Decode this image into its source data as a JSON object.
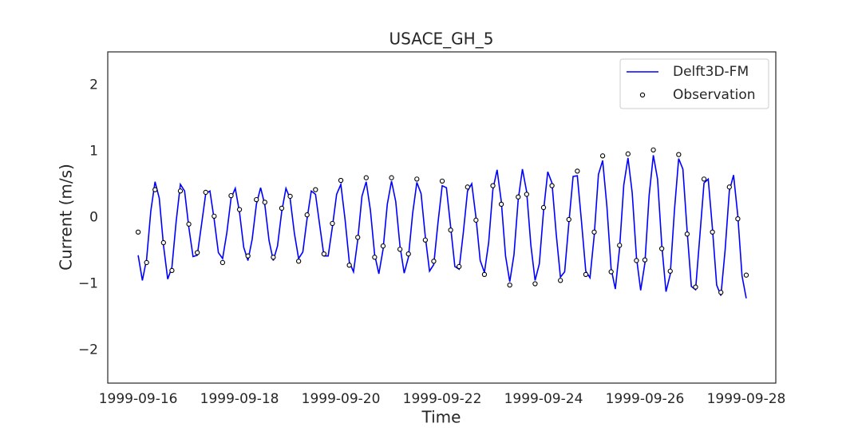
{
  "chart_data": {
    "type": "line",
    "title": "USACE_GH_5",
    "xlabel": "Time",
    "ylabel": "Current (m/s)",
    "x": [
      "1999-09-16 00:00",
      "1999-09-16 02:00",
      "1999-09-16 04:00",
      "1999-09-16 06:00",
      "1999-09-16 08:00",
      "1999-09-16 10:00",
      "1999-09-16 12:00",
      "1999-09-16 14:00",
      "1999-09-16 16:00",
      "1999-09-16 18:00",
      "1999-09-16 20:00",
      "1999-09-16 22:00",
      "1999-09-17 00:00",
      "1999-09-17 02:00",
      "1999-09-17 04:00",
      "1999-09-17 06:00",
      "1999-09-17 08:00",
      "1999-09-17 10:00",
      "1999-09-17 12:00",
      "1999-09-17 14:00",
      "1999-09-17 16:00",
      "1999-09-17 18:00",
      "1999-09-17 20:00",
      "1999-09-17 22:00",
      "1999-09-18 00:00",
      "1999-09-18 02:00",
      "1999-09-18 04:00",
      "1999-09-18 06:00",
      "1999-09-18 08:00",
      "1999-09-18 10:00",
      "1999-09-18 12:00",
      "1999-09-18 14:00",
      "1999-09-18 16:00",
      "1999-09-18 18:00",
      "1999-09-18 20:00",
      "1999-09-18 22:00",
      "1999-09-19 00:00",
      "1999-09-19 02:00",
      "1999-09-19 04:00",
      "1999-09-19 06:00",
      "1999-09-19 08:00",
      "1999-09-19 10:00",
      "1999-09-19 12:00",
      "1999-09-19 14:00",
      "1999-09-19 16:00",
      "1999-09-19 18:00",
      "1999-09-19 20:00",
      "1999-09-19 22:00",
      "1999-09-20 00:00",
      "1999-09-20 02:00",
      "1999-09-20 04:00",
      "1999-09-20 06:00",
      "1999-09-20 08:00",
      "1999-09-20 10:00",
      "1999-09-20 12:00",
      "1999-09-20 14:00",
      "1999-09-20 16:00",
      "1999-09-20 18:00",
      "1999-09-20 20:00",
      "1999-09-20 22:00",
      "1999-09-21 00:00",
      "1999-09-21 02:00",
      "1999-09-21 04:00",
      "1999-09-21 06:00",
      "1999-09-21 08:00",
      "1999-09-21 10:00",
      "1999-09-21 12:00",
      "1999-09-21 14:00",
      "1999-09-21 16:00",
      "1999-09-21 18:00",
      "1999-09-21 20:00",
      "1999-09-21 22:00",
      "1999-09-22 00:00",
      "1999-09-22 02:00",
      "1999-09-22 04:00",
      "1999-09-22 06:00",
      "1999-09-22 08:00",
      "1999-09-22 10:00",
      "1999-09-22 12:00",
      "1999-09-22 14:00",
      "1999-09-22 16:00",
      "1999-09-22 18:00",
      "1999-09-22 20:00",
      "1999-09-22 22:00",
      "1999-09-23 00:00",
      "1999-09-23 02:00",
      "1999-09-23 04:00",
      "1999-09-23 06:00",
      "1999-09-23 08:00",
      "1999-09-23 10:00",
      "1999-09-23 12:00",
      "1999-09-23 14:00",
      "1999-09-23 16:00",
      "1999-09-23 18:00",
      "1999-09-23 20:00",
      "1999-09-23 22:00",
      "1999-09-24 00:00",
      "1999-09-24 02:00",
      "1999-09-24 04:00",
      "1999-09-24 06:00",
      "1999-09-24 08:00",
      "1999-09-24 10:00",
      "1999-09-24 12:00",
      "1999-09-24 14:00",
      "1999-09-24 16:00",
      "1999-09-24 18:00",
      "1999-09-24 20:00",
      "1999-09-24 22:00",
      "1999-09-25 00:00",
      "1999-09-25 02:00",
      "1999-09-25 04:00",
      "1999-09-25 06:00",
      "1999-09-25 08:00",
      "1999-09-25 10:00",
      "1999-09-25 12:00",
      "1999-09-25 14:00",
      "1999-09-25 16:00",
      "1999-09-25 18:00",
      "1999-09-25 20:00",
      "1999-09-25 22:00",
      "1999-09-26 00:00",
      "1999-09-26 02:00",
      "1999-09-26 04:00",
      "1999-09-26 06:00",
      "1999-09-26 08:00",
      "1999-09-26 10:00",
      "1999-09-26 12:00",
      "1999-09-26 14:00",
      "1999-09-26 16:00",
      "1999-09-26 18:00",
      "1999-09-26 20:00",
      "1999-09-26 22:00",
      "1999-09-27 00:00",
      "1999-09-27 02:00",
      "1999-09-27 04:00",
      "1999-09-27 06:00",
      "1999-09-27 08:00",
      "1999-09-27 10:00",
      "1999-09-27 12:00",
      "1999-09-27 14:00",
      "1999-09-27 16:00",
      "1999-09-27 18:00",
      "1999-09-27 20:00",
      "1999-09-27 22:00",
      "1999-09-28 00:00"
    ],
    "series": [
      {
        "name": "Delft3D-FM",
        "color": "#0000ff",
        "values": [
          -0.57,
          -0.95,
          -0.63,
          0.1,
          0.54,
          0.29,
          -0.42,
          -0.93,
          -0.75,
          -0.06,
          0.5,
          0.4,
          -0.15,
          -0.59,
          -0.57,
          -0.11,
          0.36,
          0.4,
          -0.03,
          -0.53,
          -0.62,
          -0.23,
          0.29,
          0.44,
          0.08,
          -0.45,
          -0.65,
          -0.33,
          0.2,
          0.45,
          0.19,
          -0.35,
          -0.65,
          -0.43,
          0.09,
          0.44,
          0.28,
          -0.24,
          -0.62,
          -0.52,
          -0.02,
          0.4,
          0.35,
          -0.12,
          -0.58,
          -0.58,
          -0.14,
          0.35,
          0.5,
          -0.03,
          -0.67,
          -0.82,
          -0.34,
          0.32,
          0.54,
          0.11,
          -0.56,
          -0.85,
          -0.48,
          0.2,
          0.55,
          0.24,
          -0.43,
          -0.84,
          -0.6,
          0.06,
          0.53,
          0.36,
          -0.29,
          -0.81,
          -0.71,
          -0.08,
          0.48,
          0.45,
          -0.14,
          -0.74,
          -0.78,
          -0.23,
          0.4,
          0.51,
          0.0,
          -0.65,
          -0.83,
          -0.38,
          0.42,
          0.72,
          0.24,
          -0.58,
          -0.97,
          -0.56,
          0.27,
          0.73,
          0.39,
          -0.42,
          -0.95,
          -0.7,
          0.1,
          0.69,
          0.52,
          -0.25,
          -0.9,
          -0.82,
          -0.08,
          0.62,
          0.63,
          -0.07,
          -0.81,
          -0.91,
          -0.27,
          0.65,
          0.86,
          0.17,
          -0.77,
          -1.08,
          -0.47,
          0.49,
          0.9,
          0.37,
          -0.6,
          -1.1,
          -0.69,
          0.33,
          0.94,
          0.58,
          -0.42,
          -1.12,
          -0.86,
          0.11,
          0.89,
          0.73,
          -0.2,
          -1.04,
          -1.09,
          -0.29,
          0.52,
          0.58,
          -0.17,
          -1.02,
          -1.18,
          -0.49,
          0.4,
          0.64,
          0.03,
          -0.88,
          -1.22
        ]
      },
      {
        "name": "Observation",
        "color": "#000000",
        "x": [
          "1999-09-16 00:00",
          "1999-09-16 04:00",
          "1999-09-16 08:00",
          "1999-09-16 12:00",
          "1999-09-16 16:00",
          "1999-09-16 20:00",
          "1999-09-17 00:00",
          "1999-09-17 04:00",
          "1999-09-17 08:00",
          "1999-09-17 12:00",
          "1999-09-17 16:00",
          "1999-09-17 20:00",
          "1999-09-18 00:00",
          "1999-09-18 04:00",
          "1999-09-18 08:00",
          "1999-09-18 12:00",
          "1999-09-18 16:00",
          "1999-09-18 20:00",
          "1999-09-19 00:00",
          "1999-09-19 04:00",
          "1999-09-19 08:00",
          "1999-09-19 12:00",
          "1999-09-19 16:00",
          "1999-09-19 20:00",
          "1999-09-20 00:00",
          "1999-09-20 04:00",
          "1999-09-20 08:00",
          "1999-09-20 12:00",
          "1999-09-20 16:00",
          "1999-09-20 20:00",
          "1999-09-21 00:00",
          "1999-09-21 04:00",
          "1999-09-21 08:00",
          "1999-09-21 12:00",
          "1999-09-21 16:00",
          "1999-09-21 20:00",
          "1999-09-22 00:00",
          "1999-09-22 04:00",
          "1999-09-22 08:00",
          "1999-09-22 12:00",
          "1999-09-22 16:00",
          "1999-09-22 20:00",
          "1999-09-23 00:00",
          "1999-09-23 04:00",
          "1999-09-23 08:00",
          "1999-09-23 12:00",
          "1999-09-23 16:00",
          "1999-09-23 20:00",
          "1999-09-24 00:00",
          "1999-09-24 04:00",
          "1999-09-24 08:00",
          "1999-09-24 12:00",
          "1999-09-24 16:00",
          "1999-09-24 20:00",
          "1999-09-25 00:00",
          "1999-09-25 04:00",
          "1999-09-25 08:00",
          "1999-09-25 12:00",
          "1999-09-25 16:00",
          "1999-09-25 20:00",
          "1999-09-26 00:00",
          "1999-09-26 04:00",
          "1999-09-26 08:00",
          "1999-09-26 12:00",
          "1999-09-26 16:00",
          "1999-09-26 20:00",
          "1999-09-27 00:00",
          "1999-09-27 04:00",
          "1999-09-27 08:00",
          "1999-09-27 12:00",
          "1999-09-27 16:00",
          "1999-09-27 20:00",
          "1999-09-28 00:00"
        ],
        "values": [
          -0.22,
          -0.68,
          0.42,
          -0.38,
          -0.8,
          0.4,
          -0.1,
          -0.53,
          0.38,
          0.02,
          -0.68,
          0.33,
          0.12,
          -0.58,
          0.27,
          0.23,
          -0.6,
          0.14,
          0.32,
          -0.66,
          0.04,
          0.42,
          -0.55,
          -0.09,
          0.56,
          -0.72,
          -0.3,
          0.6,
          -0.6,
          -0.43,
          0.6,
          -0.48,
          -0.55,
          0.58,
          -0.34,
          -0.66,
          0.55,
          -0.19,
          -0.74,
          0.46,
          -0.04,
          -0.86,
          0.48,
          0.2,
          -1.02,
          0.31,
          0.35,
          -1.0,
          0.15,
          0.48,
          -0.95,
          -0.03,
          0.7,
          -0.86,
          -0.22,
          0.93,
          -0.82,
          -0.42,
          0.96,
          -0.65,
          -0.64,
          1.02,
          -0.47,
          -0.81,
          0.95,
          -0.25,
          -1.05,
          0.58,
          -0.22,
          -1.13,
          0.46,
          -0.02,
          -0.87
        ]
      }
    ],
    "xlim": [
      "1999-09-15 09:36",
      "1999-09-28 14:00"
    ],
    "xticks": [
      "1999-09-16",
      "1999-09-18",
      "1999-09-20",
      "1999-09-22",
      "1999-09-24",
      "1999-09-26",
      "1999-09-28"
    ],
    "ylim": [
      -2.5,
      2.5
    ],
    "yticks": [
      {
        "value": -2,
        "label": "−2"
      },
      {
        "value": -1,
        "label": "−1"
      },
      0,
      1,
      2
    ],
    "grid": false,
    "legend": "upper right"
  }
}
